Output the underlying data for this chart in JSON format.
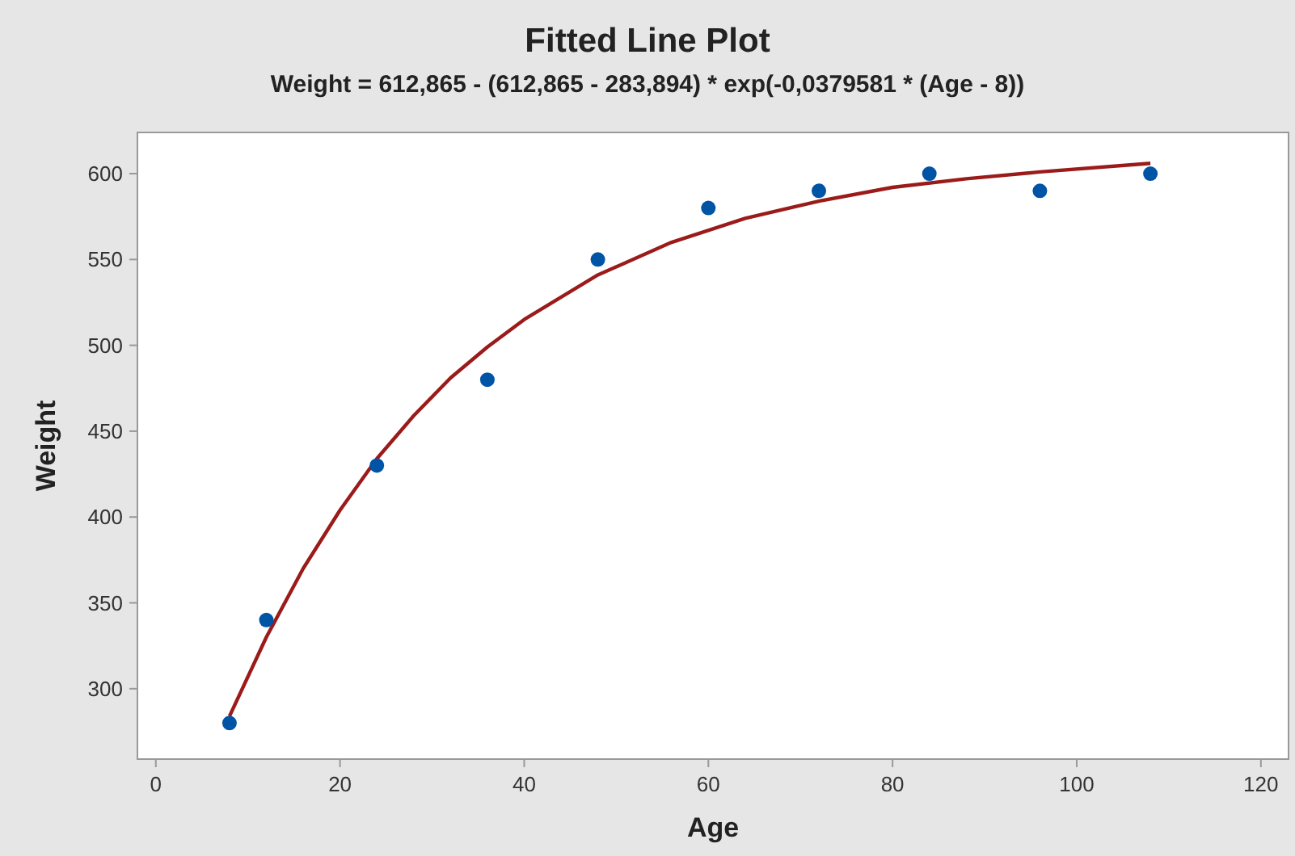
{
  "chart_data": {
    "type": "scatter",
    "title": "Fitted Line Plot",
    "subtitle": "Weight = 612,865 - (612,865 - 283,894) * exp(-0,0379581 * (Age - 8))",
    "xlabel": "Age",
    "ylabel": "Weight",
    "xlim": [
      -2,
      123
    ],
    "ylim": [
      259,
      624
    ],
    "xticks": [
      0,
      20,
      40,
      60,
      80,
      100,
      120
    ],
    "yticks": [
      300,
      350,
      400,
      450,
      500,
      550,
      600
    ],
    "grid": false,
    "series": [
      {
        "color": "#0054a6",
        "marker": "circle",
        "x": [
          8,
          12,
          24,
          36,
          48,
          60,
          72,
          84,
          96,
          108
        ],
        "values": [
          280,
          340,
          430,
          480,
          550,
          580,
          590,
          600,
          590,
          600
        ]
      },
      {
        "type": "line",
        "color": "#9b1b1b",
        "line_style": "solid",
        "marker": "none",
        "x": [
          8,
          12,
          16,
          20,
          24,
          28,
          32,
          36,
          40,
          48,
          56,
          64,
          72,
          80,
          88,
          96,
          108
        ],
        "values": [
          284,
          330,
          370,
          404,
          434,
          459,
          481,
          499,
          515,
          541,
          560,
          574,
          584,
          592,
          597,
          601,
          606
        ]
      }
    ]
  }
}
